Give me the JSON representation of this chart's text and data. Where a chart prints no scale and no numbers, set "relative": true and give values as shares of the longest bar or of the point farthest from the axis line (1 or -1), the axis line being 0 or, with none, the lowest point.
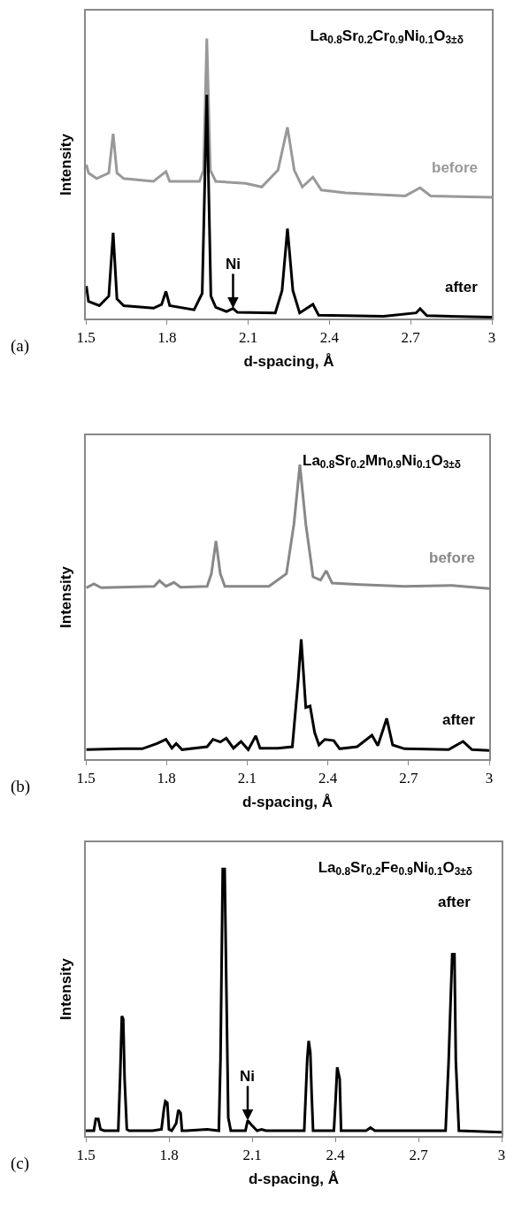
{
  "chart_data": [
    {
      "type": "line",
      "title": "La$_{0.8}$Sr$_{0.2}$Cr$_{0.9}$Ni$_{0.1}$O$_{3±δ}$",
      "xlabel": "d-spacing, Å",
      "ylabel": "Intensity",
      "relative": true,
      "legend": false,
      "grid": false,
      "xlim": [
        1.5,
        3
      ],
      "xticks": [
        1.5,
        1.8,
        2.1,
        2.4,
        2.7,
        3
      ],
      "annotations": [
        "(a)",
        {
          "text": "Ni",
          "x": 2.044,
          "y": 0.036
        }
      ],
      "series": [
        {
          "name": "before",
          "color": "#999999",
          "x": [
            1.502,
            1.51,
            1.54,
            1.585,
            1.601,
            1.615,
            1.64,
            1.75,
            1.796,
            1.81,
            1.92,
            1.935,
            1.947,
            1.96,
            1.98,
            2.09,
            2.15,
            2.21,
            2.245,
            2.27,
            2.3,
            2.339,
            2.37,
            2.46,
            2.68,
            2.735,
            2.774,
            3.0
          ],
          "values": [
            0.55,
            0.52,
            0.5,
            0.52,
            0.66,
            0.52,
            0.5,
            0.49,
            0.525,
            0.49,
            0.49,
            0.53,
            1.0,
            0.53,
            0.49,
            0.483,
            0.47,
            0.53,
            0.683,
            0.53,
            0.47,
            0.505,
            0.459,
            0.449,
            0.438,
            0.467,
            0.438,
            0.433
          ]
        },
        {
          "name": "after",
          "color": "#000000",
          "x": [
            1.502,
            1.51,
            1.55,
            1.585,
            1.601,
            1.615,
            1.64,
            1.75,
            1.78,
            1.796,
            1.81,
            1.9,
            1.93,
            1.947,
            1.962,
            1.98,
            2.02,
            2.044,
            2.06,
            2.2,
            2.225,
            2.245,
            2.265,
            2.29,
            2.339,
            2.36,
            2.6,
            2.72,
            2.735,
            2.76,
            3.0
          ],
          "values": [
            0.116,
            0.061,
            0.046,
            0.08,
            0.306,
            0.07,
            0.046,
            0.037,
            0.05,
            0.097,
            0.046,
            0.031,
            0.09,
            0.8,
            0.08,
            0.04,
            0.025,
            0.036,
            0.022,
            0.02,
            0.1,
            0.321,
            0.1,
            0.02,
            0.051,
            0.012,
            0.008,
            0.02,
            0.035,
            0.01,
            0.005
          ]
        }
      ]
    },
    {
      "type": "line",
      "title": "La$_{0.8}$Sr$_{0.2}$Mn$_{0.9}$Ni$_{0.1}$O$_{3±δ}$",
      "xlabel": "d-spacing, Å",
      "ylabel": "Intensity",
      "relative": true,
      "legend": false,
      "grid": false,
      "xlim": [
        1.5,
        3
      ],
      "xticks": [
        1.5,
        1.8,
        2.1,
        2.4,
        2.7,
        3
      ],
      "annotations": [
        "(b)"
      ],
      "series": [
        {
          "name": "before",
          "color": "#888888",
          "x": [
            1.502,
            1.53,
            1.557,
            1.754,
            1.774,
            1.798,
            1.828,
            1.852,
            1.951,
            1.967,
            1.984,
            2.0,
            2.017,
            2.181,
            2.246,
            2.274,
            2.296,
            2.318,
            2.345,
            2.373,
            2.394,
            2.416,
            2.521,
            2.685,
            2.862,
            3.0
          ],
          "values": [
            0.582,
            0.595,
            0.582,
            0.587,
            0.606,
            0.587,
            0.6,
            0.584,
            0.587,
            0.63,
            0.741,
            0.63,
            0.587,
            0.587,
            0.63,
            0.799,
            1.0,
            0.799,
            0.619,
            0.608,
            0.64,
            0.598,
            0.593,
            0.587,
            0.59,
            0.579
          ]
        },
        {
          "name": "after",
          "color": "#000000",
          "x": [
            1.502,
            1.634,
            1.71,
            1.765,
            1.798,
            1.82,
            1.836,
            1.858,
            1.951,
            1.973,
            2.0,
            2.022,
            2.049,
            2.077,
            2.104,
            2.132,
            2.148,
            2.214,
            2.268,
            2.29,
            2.301,
            2.318,
            2.334,
            2.351,
            2.367,
            2.389,
            2.422,
            2.444,
            2.509,
            2.564,
            2.586,
            2.619,
            2.641,
            2.685,
            2.849,
            2.903,
            2.936,
            3.0
          ],
          "values": [
            0.032,
            0.035,
            0.035,
            0.053,
            0.067,
            0.037,
            0.053,
            0.032,
            0.042,
            0.067,
            0.058,
            0.071,
            0.037,
            0.06,
            0.032,
            0.079,
            0.037,
            0.037,
            0.042,
            0.27,
            0.407,
            0.175,
            0.18,
            0.09,
            0.048,
            0.067,
            0.063,
            0.035,
            0.042,
            0.081,
            0.046,
            0.138,
            0.048,
            0.035,
            0.032,
            0.06,
            0.032,
            0.029
          ]
        }
      ]
    },
    {
      "type": "line",
      "title": "La$_{0.8}$Sr$_{0.2}$Fe$_{0.9}$Ni$_{0.1}$O$_{3±δ}$",
      "xlabel": "d-spacing, Å",
      "ylabel": "Intensity",
      "relative": true,
      "legend": false,
      "grid": false,
      "xlim": [
        1.5,
        3
      ],
      "xticks": [
        1.5,
        1.8,
        2.1,
        2.4,
        2.7,
        3
      ],
      "annotations": [
        "(c)",
        {
          "text": "Ni",
          "x": 2.084,
          "y": 0.058
        }
      ],
      "series": [
        {
          "name": "after",
          "color": "#000000",
          "x": [
            1.5,
            1.529,
            1.536,
            1.545,
            1.553,
            1.566,
            1.617,
            1.624,
            1.63,
            1.635,
            1.64,
            1.648,
            1.656,
            1.741,
            1.773,
            1.782,
            1.787,
            1.794,
            1.8,
            1.81,
            1.826,
            1.834,
            1.842,
            1.847,
            1.863,
            1.938,
            1.98,
            1.986,
            1.994,
            2.001,
            2.007,
            2.014,
            2.023,
            2.076,
            2.084,
            2.097,
            2.118,
            2.134,
            2.15,
            2.288,
            2.299,
            2.304,
            2.31,
            2.315,
            2.32,
            2.395,
            2.401,
            2.407,
            2.416,
            2.421,
            2.511,
            2.527,
            2.543,
            2.798,
            2.809,
            2.817,
            2.822,
            2.83,
            2.835,
            2.846,
            3.0
          ],
          "values": [
            0.02,
            0.02,
            0.064,
            0.064,
            0.025,
            0.02,
            0.02,
            0.224,
            0.449,
            0.438,
            0.213,
            0.025,
            0.02,
            0.02,
            0.025,
            0.102,
            0.13,
            0.124,
            0.025,
            0.02,
            0.047,
            0.097,
            0.086,
            0.02,
            0.02,
            0.025,
            0.02,
            0.29,
            1.0,
            1.0,
            0.565,
            0.069,
            0.02,
            0.02,
            0.058,
            0.042,
            0.02,
            0.025,
            0.02,
            0.02,
            0.29,
            0.356,
            0.312,
            0.152,
            0.02,
            0.02,
            0.13,
            0.257,
            0.213,
            0.02,
            0.02,
            0.031,
            0.02,
            0.02,
            0.279,
            0.532,
            0.681,
            0.681,
            0.279,
            0.02,
            0.014
          ]
        }
      ]
    }
  ]
}
